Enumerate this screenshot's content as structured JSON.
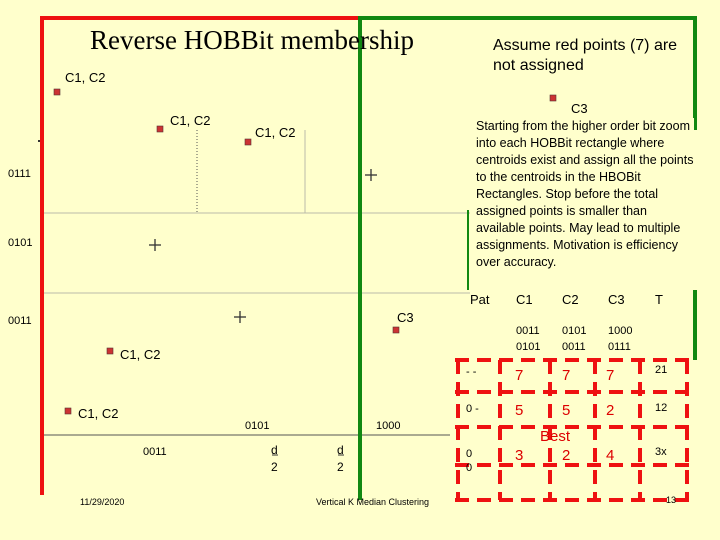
{
  "slide": {
    "title": "Reverse HOBBit membership",
    "assumption": "Assume red points (7) are not assigned",
    "description": "Starting from the higher order bit zoom into each HOBBit rectangle where centroids exist and assign all the points to the centroids in the HBOBit Rectangles. Stop before the total assigned points is smaller than available points. May lead to multiple assignments. Motivation is efficiency over accuracy.",
    "date": "11/29/2020",
    "footer_title": "Vertical K Median Clustering",
    "page_number": "13"
  },
  "plot": {
    "y_labels": [
      "0111",
      "0101",
      "0011"
    ],
    "x_labels": [
      "0011",
      "0101",
      "1000"
    ],
    "point_labels": [
      "C1, C2",
      "C1, C2",
      "C1, C2",
      "C3",
      "C3",
      "C1, C2",
      "C1, C2"
    ],
    "d_labels": [
      "d",
      "2",
      "d",
      "2"
    ]
  },
  "table": {
    "headers": [
      "Pat",
      "C1",
      "C2",
      "C3",
      "T"
    ],
    "sub_headers": [
      "0011 0101",
      "0101 0011",
      "1000 0111"
    ],
    "rows": [
      {
        "pat": "- -",
        "c1": "7",
        "c2": "7",
        "c3": "7",
        "t": "21"
      },
      {
        "pat": "0 -",
        "c1": "5",
        "c2": "5",
        "c3": "2",
        "t": "12"
      },
      {
        "pat": "0 0",
        "c1": "3",
        "c2": "2",
        "c3": "4",
        "t": "3x"
      }
    ],
    "best_label": "Best"
  },
  "colors": {
    "background": "#ffffcc",
    "red": "#ee1111",
    "green": "#118811",
    "point": "#cc3333"
  }
}
